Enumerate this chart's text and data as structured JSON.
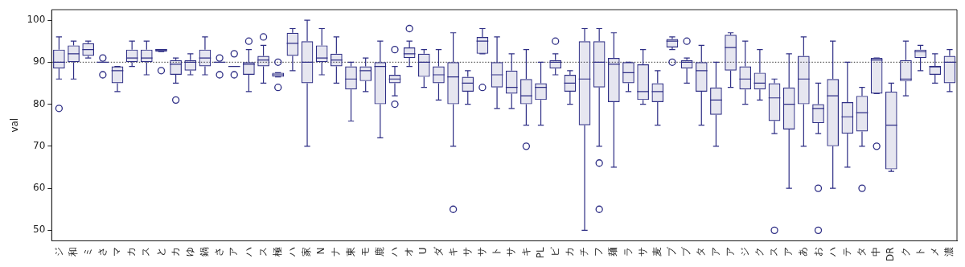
{
  "chart_data": {
    "type": "box",
    "ylabel": "val",
    "color": "#2e2e85",
    "categories": [
      "ジ",
      "和",
      "ミ",
      "さ",
      "マ",
      "カ",
      "ス",
      "と",
      "カ",
      "ゆ",
      "鍋",
      "さ",
      "ア",
      "ハ",
      "ス",
      "極",
      "ハ",
      "家",
      "N",
      "ナ",
      "東",
      "モ",
      "鹿",
      "ハ",
      "オ",
      "U",
      "ダ",
      "キ",
      "サ",
      "サ",
      "ト",
      "サ",
      "キ",
      "PL",
      "ビ",
      "カ",
      "チ",
      "フ",
      "麺",
      "ラ",
      "サ",
      "麦",
      "ブ",
      "ブ",
      "タ",
      "ア",
      "ア",
      "ジ",
      "ク",
      "ス",
      "ア",
      "あ",
      "お",
      "ハ",
      "テ",
      "タ",
      "中",
      "DR",
      "ク",
      "ト",
      "メ",
      "濃"
    ],
    "ylim": [
      47.5,
      102.5
    ],
    "yticks": [
      50,
      60,
      70,
      80,
      90,
      100
    ],
    "ref_lines": [
      {
        "axis": "y",
        "value": 90,
        "line_style": "dotted",
        "color": "#000000"
      }
    ],
    "boxes": [
      {
        "low": 86,
        "q1": 88.5,
        "median": 90,
        "q3": 93,
        "high": 96,
        "outliers": [
          79
        ]
      },
      {
        "low": 86,
        "q1": 90,
        "median": 92,
        "q3": 94,
        "high": 95
      },
      {
        "low": 91,
        "q1": 91.5,
        "median": 93,
        "q3": 94.5,
        "high": 95
      },
      {
        "low": 90,
        "q1": 90,
        "median": 90,
        "q3": 90,
        "high": 90,
        "outliers": [
          91,
          87
        ]
      },
      {
        "low": 83,
        "q1": 85,
        "median": 88,
        "q3": 89,
        "high": 89
      },
      {
        "low": 89,
        "q1": 90,
        "median": 91,
        "q3": 93,
        "high": 95
      },
      {
        "low": 87,
        "q1": 90,
        "median": 91,
        "q3": 93,
        "high": 95
      },
      {
        "low": 92.5,
        "q1": 92.5,
        "median": 93,
        "q3": 93,
        "high": 93,
        "outliers": [
          88
        ]
      },
      {
        "low": 85,
        "q1": 87,
        "median": 89.5,
        "q3": 90.5,
        "high": 91,
        "outliers": [
          81
        ]
      },
      {
        "low": 87,
        "q1": 88,
        "median": 90,
        "q3": 90.5,
        "high": 92
      },
      {
        "low": 87,
        "q1": 89,
        "median": 91,
        "q3": 93,
        "high": 96
      },
      {
        "low": 90,
        "q1": 90,
        "median": 90,
        "q3": 90,
        "high": 90,
        "outliers": [
          91,
          87
        ]
      },
      {
        "low": 89,
        "q1": 89,
        "median": 89,
        "q3": 89,
        "high": 89,
        "outliers": [
          92,
          87
        ]
      },
      {
        "low": 83,
        "q1": 87,
        "median": 89.5,
        "q3": 90,
        "high": 93,
        "outliers": [
          95
        ]
      },
      {
        "low": 85,
        "q1": 89,
        "median": 90.5,
        "q3": 91.5,
        "high": 94,
        "outliers": [
          96
        ]
      },
      {
        "low": 86.5,
        "q1": 86.5,
        "median": 87,
        "q3": 87.5,
        "high": 87.5,
        "outliers": [
          90,
          84
        ]
      },
      {
        "low": 88,
        "q1": 91.5,
        "median": 94.5,
        "q3": 97,
        "high": 98
      },
      {
        "low": 70,
        "q1": 85,
        "median": 90,
        "q3": 95,
        "high": 100
      },
      {
        "low": 87,
        "q1": 90,
        "median": 91,
        "q3": 94,
        "high": 98
      },
      {
        "low": 85,
        "q1": 89,
        "median": 90.5,
        "q3": 92,
        "high": 96
      },
      {
        "low": 76,
        "q1": 83.5,
        "median": 86,
        "q3": 89,
        "high": 90
      },
      {
        "low": 83,
        "q1": 85.5,
        "median": 88,
        "q3": 89,
        "high": 91
      },
      {
        "low": 72,
        "q1": 80,
        "median": 89,
        "q3": 90,
        "high": 95
      },
      {
        "low": 82,
        "q1": 85,
        "median": 86,
        "q3": 87,
        "high": 89,
        "outliers": [
          93,
          80
        ]
      },
      {
        "low": 89,
        "q1": 91,
        "median": 92,
        "q3": 93.5,
        "high": 95,
        "outliers": [
          98
        ]
      },
      {
        "low": 84,
        "q1": 86.5,
        "median": 90,
        "q3": 92,
        "high": 93
      },
      {
        "low": 81,
        "q1": 85,
        "median": 87,
        "q3": 89,
        "high": 93
      },
      {
        "low": 70,
        "q1": 80,
        "median": 86.5,
        "q3": 90,
        "high": 97,
        "outliers": [
          55
        ]
      },
      {
        "low": 80,
        "q1": 83,
        "median": 85,
        "q3": 86.5,
        "high": 88
      },
      {
        "low": 92,
        "q1": 92,
        "median": 95,
        "q3": 96,
        "high": 98,
        "outliers": [
          84
        ]
      },
      {
        "low": 79,
        "q1": 84,
        "median": 87,
        "q3": 90,
        "high": 96
      },
      {
        "low": 79,
        "q1": 82.5,
        "median": 84,
        "q3": 88,
        "high": 92
      },
      {
        "low": 75,
        "q1": 80,
        "median": 82,
        "q3": 86,
        "high": 93,
        "outliers": [
          70
        ]
      },
      {
        "low": 75,
        "q1": 81,
        "median": 84,
        "q3": 85,
        "high": 90
      },
      {
        "low": 87,
        "q1": 88.5,
        "median": 90,
        "q3": 90.5,
        "high": 92,
        "outliers": [
          95
        ]
      },
      {
        "low": 80,
        "q1": 83,
        "median": 85,
        "q3": 87,
        "high": 88
      },
      {
        "low": 50,
        "q1": 75,
        "median": 86,
        "q3": 95,
        "high": 98
      },
      {
        "low": 70,
        "q1": 84,
        "median": 90,
        "q3": 95,
        "high": 98,
        "outliers": [
          66,
          55
        ]
      },
      {
        "low": 65,
        "q1": 80.5,
        "median": 89.5,
        "q3": 91,
        "high": 97
      },
      {
        "low": 83,
        "q1": 85,
        "median": 87.5,
        "q3": 90,
        "high": 90
      },
      {
        "low": 80,
        "q1": 81,
        "median": 83,
        "q3": 89.5,
        "high": 93
      },
      {
        "low": 75,
        "q1": 80.5,
        "median": 83,
        "q3": 85,
        "high": 88
      },
      {
        "low": 93,
        "q1": 93.5,
        "median": 95,
        "q3": 95.5,
        "high": 96,
        "outliers": [
          90
        ]
      },
      {
        "low": 85,
        "q1": 88.5,
        "median": 90,
        "q3": 90.5,
        "high": 91,
        "outliers": [
          95
        ]
      },
      {
        "low": 75,
        "q1": 83,
        "median": 88,
        "q3": 90,
        "high": 94
      },
      {
        "low": 70,
        "q1": 77.5,
        "median": 81,
        "q3": 84,
        "high": 90
      },
      {
        "low": 84,
        "q1": 88,
        "median": 93.5,
        "q3": 96.5,
        "high": 97
      },
      {
        "low": 80,
        "q1": 83.5,
        "median": 86,
        "q3": 89,
        "high": 95
      },
      {
        "low": 81,
        "q1": 83.5,
        "median": 85,
        "q3": 87.5,
        "high": 93
      },
      {
        "low": 73,
        "q1": 76,
        "median": 81.5,
        "q3": 85,
        "high": 86,
        "outliers": [
          50
        ]
      },
      {
        "low": 60,
        "q1": 74,
        "median": 80,
        "q3": 84,
        "high": 92
      },
      {
        "low": 70,
        "q1": 80,
        "median": 86,
        "q3": 91.5,
        "high": 96
      },
      {
        "low": 73,
        "q1": 75.5,
        "median": 79,
        "q3": 80,
        "high": 85,
        "outliers": [
          60,
          50
        ]
      },
      {
        "low": 60,
        "q1": 70,
        "median": 82,
        "q3": 86,
        "high": 95
      },
      {
        "low": 65,
        "q1": 73,
        "median": 77,
        "q3": 80.5,
        "high": 90
      },
      {
        "low": 70,
        "q1": 73.5,
        "median": 78,
        "q3": 82,
        "high": 84,
        "outliers": [
          60
        ]
      },
      {
        "low": 82.5,
        "q1": 82.5,
        "median": 90.5,
        "q3": 91,
        "high": 91,
        "outliers": [
          70
        ]
      },
      {
        "low": 64,
        "q1": 64.5,
        "median": 75,
        "q3": 83,
        "high": 85
      },
      {
        "low": 82,
        "q1": 85.5,
        "median": 86,
        "q3": 90.5,
        "high": 95
      },
      {
        "low": 88,
        "q1": 91,
        "median": 92.5,
        "q3": 93,
        "high": 94
      },
      {
        "low": 85,
        "q1": 87,
        "median": 89,
        "q3": 89,
        "high": 92
      },
      {
        "low": 83,
        "q1": 85,
        "median": 90,
        "q3": 91.5,
        "high": 93
      }
    ]
  }
}
